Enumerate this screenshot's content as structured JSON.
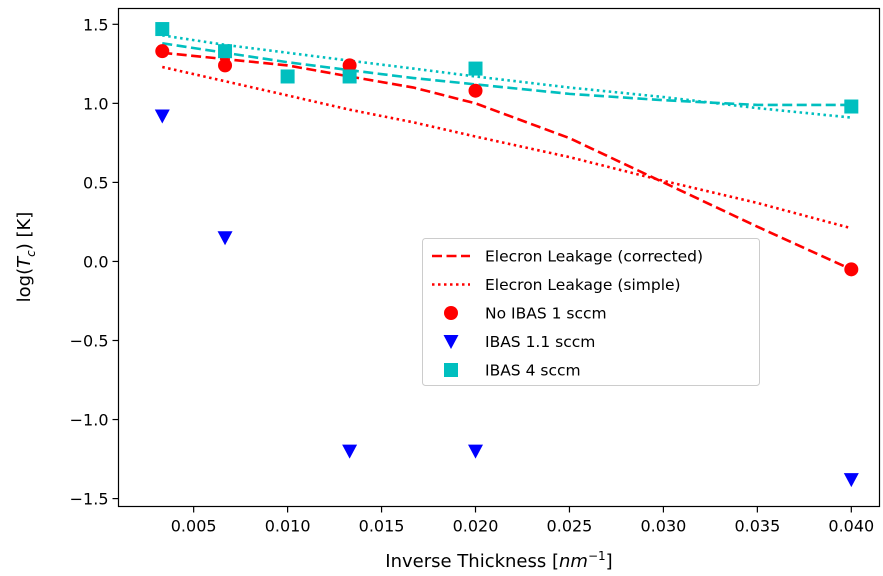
{
  "chart_data": {
    "type": "scatter",
    "xlabel": "Inverse Thickness [nm⁻¹]",
    "ylabel": "log(T_c) [K]",
    "xlim": [
      0.001,
      0.0415
    ],
    "ylim": [
      -1.55,
      1.6
    ],
    "x_ticks": [
      0.005,
      0.01,
      0.015,
      0.02,
      0.025,
      0.03,
      0.035,
      0.04
    ],
    "x_tick_labels": [
      "0.005",
      "0.010",
      "0.015",
      "0.020",
      "0.025",
      "0.030",
      "0.035",
      "0.040"
    ],
    "y_ticks": [
      -1.5,
      -1.0,
      -0.5,
      0.0,
      0.5,
      1.0,
      1.5
    ],
    "y_tick_labels": [
      "−1.5",
      "−1.0",
      "−0.5",
      "0.0",
      "0.5",
      "1.0",
      "1.5"
    ],
    "legend_position": "center-right",
    "series": [
      {
        "name": "Elecron Leakage (corrected)",
        "kind": "line",
        "style": "dashed",
        "color": "#ff0000",
        "x": [
          0.00333,
          0.00667,
          0.01,
          0.0133,
          0.0167,
          0.02,
          0.025,
          0.03,
          0.035,
          0.04
        ],
        "y": [
          1.32,
          1.28,
          1.24,
          1.17,
          1.1,
          1.0,
          0.78,
          0.5,
          0.22,
          -0.05
        ]
      },
      {
        "name": "Elecron Leakage (simple)",
        "kind": "line",
        "style": "dotted",
        "color": "#ff0000",
        "x": [
          0.00333,
          0.00667,
          0.01,
          0.0133,
          0.0167,
          0.02,
          0.025,
          0.03,
          0.035,
          0.04
        ],
        "y": [
          1.23,
          1.14,
          1.05,
          0.96,
          0.88,
          0.79,
          0.66,
          0.51,
          0.37,
          0.21
        ]
      },
      {
        "name": "",
        "kind": "line",
        "style": "dashed",
        "color": "#00bfbf",
        "x": [
          0.00333,
          0.00667,
          0.01,
          0.0133,
          0.0167,
          0.02,
          0.025,
          0.03,
          0.035,
          0.04
        ],
        "y": [
          1.38,
          1.32,
          1.26,
          1.21,
          1.16,
          1.12,
          1.06,
          1.02,
          0.99,
          0.99
        ]
      },
      {
        "name": "",
        "kind": "line",
        "style": "dotted",
        "color": "#00bfbf",
        "x": [
          0.00333,
          0.00667,
          0.01,
          0.0133,
          0.0167,
          0.02,
          0.025,
          0.03,
          0.035,
          0.04
        ],
        "y": [
          1.43,
          1.37,
          1.32,
          1.27,
          1.22,
          1.17,
          1.1,
          1.04,
          0.97,
          0.91
        ]
      },
      {
        "name": "No IBAS 1 sccm",
        "kind": "scatter",
        "marker": "circle",
        "color": "#ff0000",
        "x": [
          0.00333,
          0.00667,
          0.0133,
          0.02,
          0.04
        ],
        "y": [
          1.33,
          1.24,
          1.24,
          1.08,
          -0.05
        ]
      },
      {
        "name": "IBAS 1.1 sccm",
        "kind": "scatter",
        "marker": "triangle-down",
        "color": "#0000ff",
        "x": [
          0.00333,
          0.00667,
          0.0133,
          0.02,
          0.04
        ],
        "y": [
          0.92,
          0.15,
          -1.2,
          -1.2,
          -1.38
        ]
      },
      {
        "name": "IBAS 4 sccm",
        "kind": "scatter",
        "marker": "square",
        "color": "#00bfbf",
        "x": [
          0.00333,
          0.00667,
          0.01,
          0.0133,
          0.02,
          0.04
        ],
        "y": [
          1.47,
          1.33,
          1.17,
          1.17,
          1.22,
          0.98
        ]
      }
    ]
  }
}
